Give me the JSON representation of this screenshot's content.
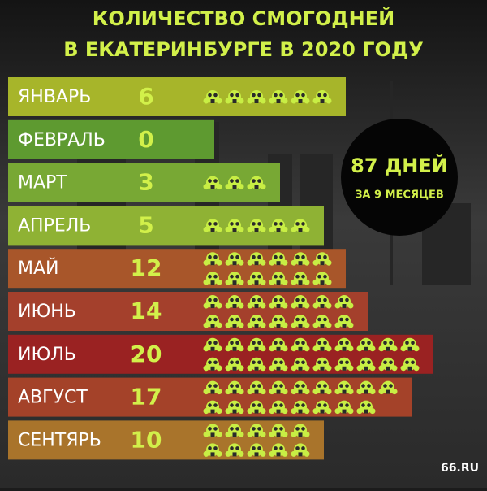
{
  "chart_data": {
    "type": "pictogram-bar",
    "title": [
      "КОЛИЧЕСТВО СМОГОДНЕЙ",
      "В ЕКАТЕРИНБУРГЕ В 2020 ГОДУ"
    ],
    "categories": [
      "ЯНВАРЬ",
      "ФЕВРАЛЬ",
      "МАРТ",
      "АПРЕЛЬ",
      "МАЙ",
      "ИЮНЬ",
      "ИЮЛЬ",
      "АВГУСТ",
      "СЕНТЯРЬ"
    ],
    "values": [
      6,
      0,
      3,
      5,
      12,
      14,
      20,
      17,
      10
    ],
    "colors": [
      "#a7b52a",
      "#5e9a30",
      "#78a834",
      "#8fb234",
      "#a8562a",
      "#a4402c",
      "#9a2222",
      "#a44229",
      "#a9742b"
    ],
    "annotation": [
      "87 ДНЕЙ",
      "ЗА 9 МЕСЯЦЕВ"
    ],
    "logo": "66.RU"
  }
}
